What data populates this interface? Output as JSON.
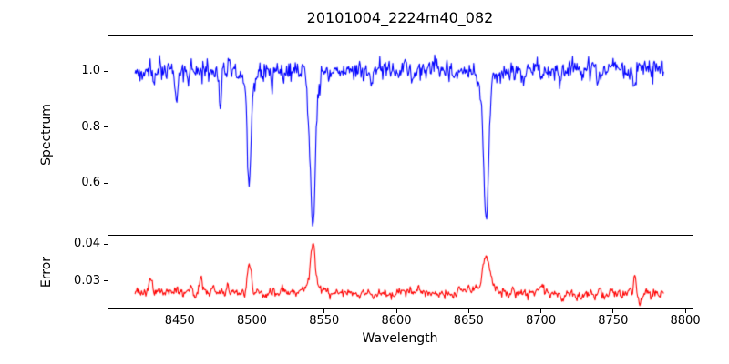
{
  "figure": {
    "title": "20101004_2224m40_082",
    "background_color": "#ffffff",
    "text_color": "#000000"
  },
  "chart_data": [
    {
      "type": "line",
      "panel": "spectrum",
      "ylabel": "Spectrum",
      "series_color": "#0000ff",
      "xlim": [
        8400,
        8805
      ],
      "ylim": [
        0.415,
        1.127
      ],
      "grid": false,
      "legend": "none",
      "yticks": [
        {
          "value": 0.6,
          "label": "0.6"
        },
        {
          "value": 0.8,
          "label": "0.8"
        },
        {
          "value": 1.0,
          "label": "1.0"
        }
      ],
      "x_start": 8419,
      "x_end": 8785,
      "x_step": 0.5,
      "continuum": 1.0,
      "trend": 0.005,
      "noise_sigma": 0.019,
      "noise_ar": 0.25,
      "seed": 1234,
      "features": [
        {
          "center": 8447.5,
          "amp": -0.11,
          "sigma": 0.9
        },
        {
          "center": 8456.0,
          "amp": -0.05,
          "sigma": 0.7
        },
        {
          "center": 8478.0,
          "amp": -0.12,
          "sigma": 0.9
        },
        {
          "center": 8498.0,
          "amp": -0.36,
          "sigma": 1.4
        },
        {
          "center": 8498.0,
          "amp": -0.04,
          "sigma": 4.0
        },
        {
          "center": 8514.0,
          "amp": -0.06,
          "sigma": 0.8
        },
        {
          "center": 8542.1,
          "amp": -0.5,
          "sigma": 1.8
        },
        {
          "center": 8542.1,
          "amp": -0.05,
          "sigma": 5.0
        },
        {
          "center": 8582.0,
          "amp": -0.04,
          "sigma": 0.8
        },
        {
          "center": 8611.0,
          "amp": -0.04,
          "sigma": 0.8
        },
        {
          "center": 8662.1,
          "amp": -0.49,
          "sigma": 1.7
        },
        {
          "center": 8662.1,
          "amp": -0.04,
          "sigma": 5.0
        },
        {
          "center": 8688.0,
          "amp": -0.05,
          "sigma": 0.8
        },
        {
          "center": 8713.0,
          "amp": -0.04,
          "sigma": 0.8
        },
        {
          "center": 8765.0,
          "amp": -0.07,
          "sigma": 0.9
        }
      ],
      "read_values": {
        "continuum_level": 1.0,
        "absorption_line_minima": [
          {
            "wavelength": 8498,
            "flux": 0.6
          },
          {
            "wavelength": 8542,
            "flux": 0.45
          },
          {
            "wavelength": 8662,
            "flux": 0.47
          }
        ]
      }
    },
    {
      "type": "line",
      "panel": "error",
      "ylabel": "Error",
      "xlabel": "Wavelength",
      "series_color": "#ff0000",
      "xlim": [
        8400,
        8805
      ],
      "ylim": [
        0.0225,
        0.0425
      ],
      "grid": false,
      "legend": "none",
      "yticks": [
        {
          "value": 0.03,
          "label": "0.03"
        },
        {
          "value": 0.04,
          "label": "0.04"
        }
      ],
      "xticks": [
        {
          "value": 8450,
          "label": "8450"
        },
        {
          "value": 8500,
          "label": "8500"
        },
        {
          "value": 8550,
          "label": "8550"
        },
        {
          "value": 8600,
          "label": "8600"
        },
        {
          "value": 8650,
          "label": "8650"
        },
        {
          "value": 8700,
          "label": "8700"
        },
        {
          "value": 8750,
          "label": "8750"
        },
        {
          "value": 8800,
          "label": "8800"
        }
      ],
      "x_start": 8419,
      "x_end": 8785,
      "x_step": 0.5,
      "continuum": 0.0268,
      "trend": -0.0003,
      "noise_sigma": 0.0006,
      "noise_ar": 0.4,
      "seed": 99,
      "features": [
        {
          "center": 8430.0,
          "amp": 0.0042,
          "sigma": 1.0
        },
        {
          "center": 8447.0,
          "amp": 0.0015,
          "sigma": 0.8
        },
        {
          "center": 8458.0,
          "amp": 0.0015,
          "sigma": 0.8
        },
        {
          "center": 8465.0,
          "amp": 0.004,
          "sigma": 1.0
        },
        {
          "center": 8473.0,
          "amp": 0.0018,
          "sigma": 0.8
        },
        {
          "center": 8483.0,
          "amp": 0.0022,
          "sigma": 0.9
        },
        {
          "center": 8498.0,
          "amp": 0.007,
          "sigma": 1.3
        },
        {
          "center": 8521.0,
          "amp": 0.0018,
          "sigma": 1.0
        },
        {
          "center": 8542.1,
          "amp": 0.0135,
          "sigma": 1.5
        },
        {
          "center": 8542.1,
          "amp": 0.0015,
          "sigma": 6.0
        },
        {
          "center": 8605.0,
          "amp": 0.0008,
          "sigma": 2.0
        },
        {
          "center": 8662.1,
          "amp": 0.0085,
          "sigma": 2.2
        },
        {
          "center": 8662.1,
          "amp": 0.002,
          "sigma": 7.0
        },
        {
          "center": 8700.0,
          "amp": 0.001,
          "sigma": 2.0
        },
        {
          "center": 8765.0,
          "amp": 0.005,
          "sigma": 0.8
        },
        {
          "center": 8768.5,
          "amp": -0.0035,
          "sigma": 0.7
        }
      ],
      "read_values": {
        "baseline_level": 0.027,
        "error_peaks": [
          {
            "wavelength": 8430,
            "error": 0.031
          },
          {
            "wavelength": 8465,
            "error": 0.031
          },
          {
            "wavelength": 8498,
            "error": 0.034
          },
          {
            "wavelength": 8542,
            "error": 0.041
          },
          {
            "wavelength": 8662,
            "error": 0.037
          },
          {
            "wavelength": 8765,
            "error": 0.033
          }
        ]
      }
    }
  ]
}
